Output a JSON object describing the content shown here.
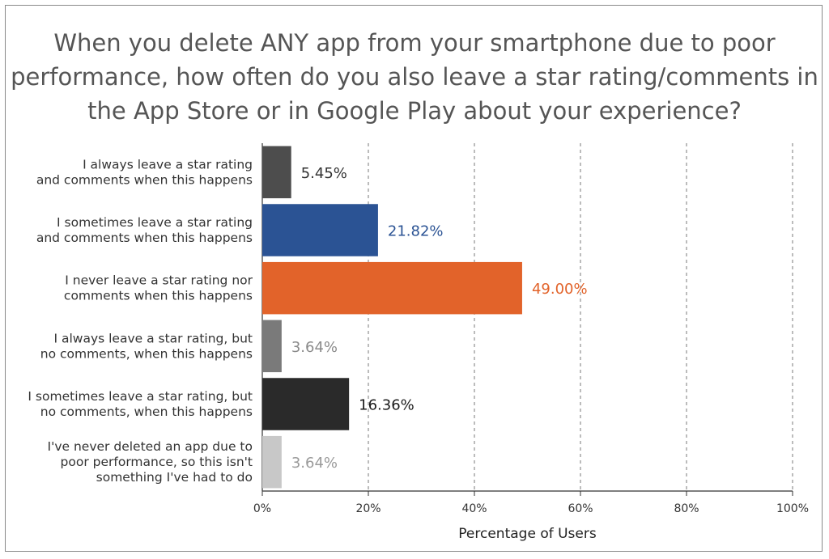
{
  "chart_data": {
    "type": "bar",
    "orientation": "horizontal",
    "title": "When you delete ANY app from your smartphone due to poor performance, how often do you also leave a star rating/comments in the App Store or in Google Play about your experience?",
    "xlabel": "Percentage of Users",
    "ylabel": "",
    "xlim": [
      0,
      100
    ],
    "x_ticks": [
      "0%",
      "20%",
      "40%",
      "60%",
      "80%",
      "100%"
    ],
    "grid": "vertical dashed",
    "legend": "none",
    "categories": [
      [
        "I always leave a star rating",
        "and comments when this happens"
      ],
      [
        "I sometimes leave a star rating",
        "and comments when this happens"
      ],
      [
        "I never leave a star rating nor",
        "comments when this happens"
      ],
      [
        "I always leave a star rating, but",
        "no comments, when this happens"
      ],
      [
        "I sometimes leave a star rating, but",
        "no comments, when this happens"
      ],
      [
        "I've never deleted an app due to",
        "poor performance, so this isn't",
        "something I've had to do"
      ]
    ],
    "values": [
      5.45,
      21.82,
      49.0,
      3.64,
      16.36,
      3.64
    ],
    "data_labels": [
      "5.45%",
      "21.82%",
      "49.00%",
      "3.64%",
      "16.36%",
      "3.64%"
    ],
    "bar_colors": [
      "#4d4d4d",
      "#2b5394",
      "#e2632a",
      "#7a7a7a",
      "#2a2a2a",
      "#c8c8c8"
    ],
    "label_colors": [
      "#333333",
      "#2b5394",
      "#e2632a",
      "#8a8a8a",
      "#1a1a1a",
      "#9a9a9a"
    ]
  }
}
